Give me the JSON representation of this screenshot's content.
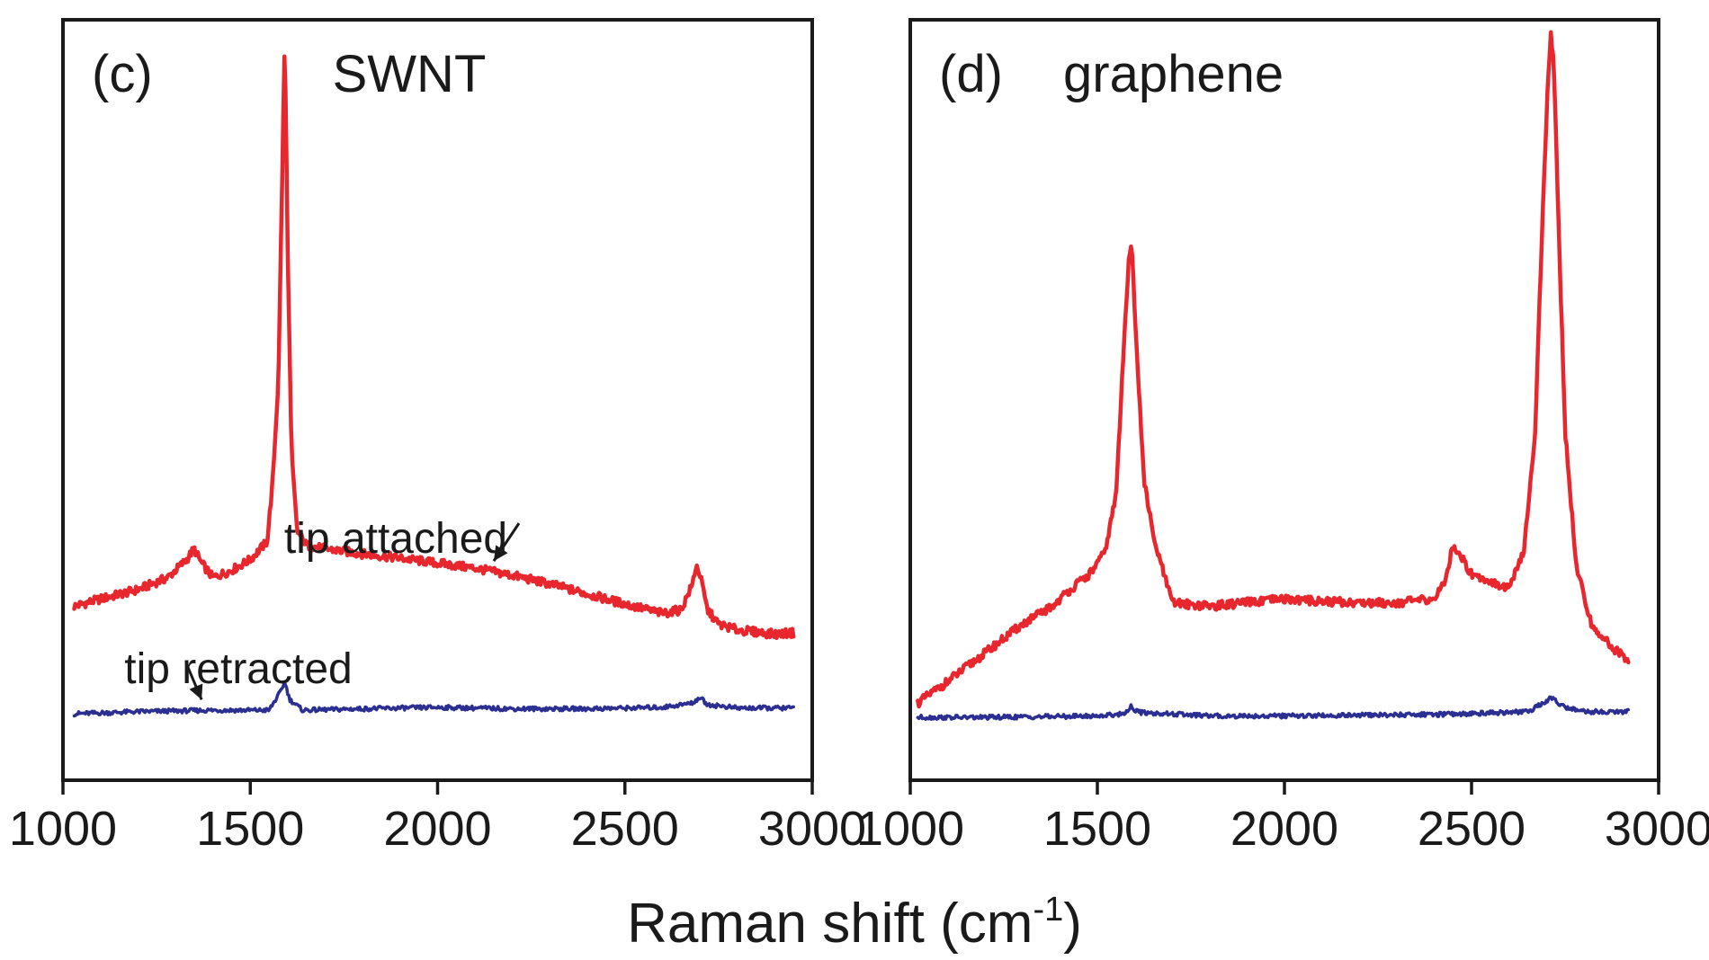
{
  "figure": {
    "xlabel_main": "Raman shift (cm",
    "xlabel_sup": "-1",
    "xlabel_close": ")"
  },
  "colors": {
    "attached": "#e8262d",
    "retracted": "#2b2f92",
    "axis": "#1a1a1a"
  },
  "chart_data": [
    {
      "type": "line",
      "panel": "(c)",
      "title": "SWNT",
      "xlim": [
        1000,
        3000
      ],
      "xticks": [
        1000,
        1500,
        2000,
        2500,
        3000
      ],
      "yticks": [],
      "grid": false,
      "annotations": [
        {
          "text": "tip attached",
          "target_x": 2150,
          "target_series": "attached"
        },
        {
          "text": "tip retracted",
          "target_x": 1370,
          "target_series": "retracted"
        }
      ],
      "series": [
        {
          "key": "attached",
          "points": [
            [
              1030,
              0.205
            ],
            [
              1100,
              0.215
            ],
            [
              1200,
              0.228
            ],
            [
              1280,
              0.245
            ],
            [
              1330,
              0.27
            ],
            [
              1350,
              0.285
            ],
            [
              1370,
              0.265
            ],
            [
              1400,
              0.245
            ],
            [
              1450,
              0.255
            ],
            [
              1500,
              0.27
            ],
            [
              1545,
              0.295
            ],
            [
              1560,
              0.38
            ],
            [
              1575,
              0.52
            ],
            [
              1585,
              0.8
            ],
            [
              1592,
              1.0
            ],
            [
              1600,
              0.7
            ],
            [
              1610,
              0.42
            ],
            [
              1625,
              0.31
            ],
            [
              1650,
              0.29
            ],
            [
              1700,
              0.285
            ],
            [
              1800,
              0.278
            ],
            [
              1900,
              0.272
            ],
            [
              2000,
              0.265
            ],
            [
              2100,
              0.258
            ],
            [
              2200,
              0.248
            ],
            [
              2300,
              0.236
            ],
            [
              2400,
              0.222
            ],
            [
              2500,
              0.208
            ],
            [
              2600,
              0.195
            ],
            [
              2650,
              0.2
            ],
            [
              2680,
              0.235
            ],
            [
              2690,
              0.262
            ],
            [
              2700,
              0.25
            ],
            [
              2720,
              0.2
            ],
            [
              2750,
              0.18
            ],
            [
              2800,
              0.172
            ],
            [
              2900,
              0.166
            ],
            [
              2950,
              0.168
            ]
          ]
        },
        {
          "key": "retracted",
          "points": [
            [
              1030,
              0.055
            ],
            [
              1200,
              0.058
            ],
            [
              1400,
              0.06
            ],
            [
              1550,
              0.06
            ],
            [
              1580,
              0.085
            ],
            [
              1592,
              0.1
            ],
            [
              1605,
              0.075
            ],
            [
              1640,
              0.06
            ],
            [
              1800,
              0.062
            ],
            [
              2000,
              0.064
            ],
            [
              2200,
              0.062
            ],
            [
              2400,
              0.062
            ],
            [
              2600,
              0.064
            ],
            [
              2680,
              0.07
            ],
            [
              2700,
              0.078
            ],
            [
              2720,
              0.068
            ],
            [
              2800,
              0.063
            ],
            [
              2950,
              0.063
            ]
          ]
        }
      ]
    },
    {
      "type": "line",
      "panel": "(d)",
      "title": "graphene",
      "xlim": [
        1000,
        3000
      ],
      "xticks": [
        1000,
        1500,
        2000,
        2500,
        3000
      ],
      "yticks": [],
      "grid": false,
      "series": [
        {
          "key": "attached",
          "points": [
            [
              1020,
              0.07
            ],
            [
              1100,
              0.1
            ],
            [
              1200,
              0.14
            ],
            [
              1300,
              0.18
            ],
            [
              1380,
              0.205
            ],
            [
              1420,
              0.225
            ],
            [
              1480,
              0.25
            ],
            [
              1520,
              0.28
            ],
            [
              1550,
              0.36
            ],
            [
              1570,
              0.56
            ],
            [
              1585,
              0.7
            ],
            [
              1592,
              0.71
            ],
            [
              1605,
              0.56
            ],
            [
              1625,
              0.38
            ],
            [
              1650,
              0.3
            ],
            [
              1700,
              0.21
            ],
            [
              1800,
              0.205
            ],
            [
              1900,
              0.21
            ],
            [
              2000,
              0.215
            ],
            [
              2100,
              0.212
            ],
            [
              2200,
              0.21
            ],
            [
              2300,
              0.21
            ],
            [
              2400,
              0.215
            ],
            [
              2430,
              0.24
            ],
            [
              2450,
              0.29
            ],
            [
              2465,
              0.28
            ],
            [
              2500,
              0.25
            ],
            [
              2550,
              0.24
            ],
            [
              2600,
              0.23
            ],
            [
              2640,
              0.28
            ],
            [
              2670,
              0.45
            ],
            [
              2690,
              0.75
            ],
            [
              2705,
              0.95
            ],
            [
              2712,
              1.0
            ],
            [
              2720,
              0.96
            ],
            [
              2735,
              0.7
            ],
            [
              2750,
              0.45
            ],
            [
              2780,
              0.26
            ],
            [
              2820,
              0.18
            ],
            [
              2870,
              0.15
            ],
            [
              2920,
              0.13
            ]
          ]
        },
        {
          "key": "retracted",
          "points": [
            [
              1020,
              0.05
            ],
            [
              1200,
              0.05
            ],
            [
              1500,
              0.052
            ],
            [
              1570,
              0.055
            ],
            [
              1590,
              0.065
            ],
            [
              1610,
              0.057
            ],
            [
              1800,
              0.052
            ],
            [
              2000,
              0.052
            ],
            [
              2400,
              0.054
            ],
            [
              2650,
              0.058
            ],
            [
              2700,
              0.072
            ],
            [
              2715,
              0.078
            ],
            [
              2740,
              0.066
            ],
            [
              2800,
              0.058
            ],
            [
              2920,
              0.058
            ]
          ]
        }
      ]
    }
  ]
}
